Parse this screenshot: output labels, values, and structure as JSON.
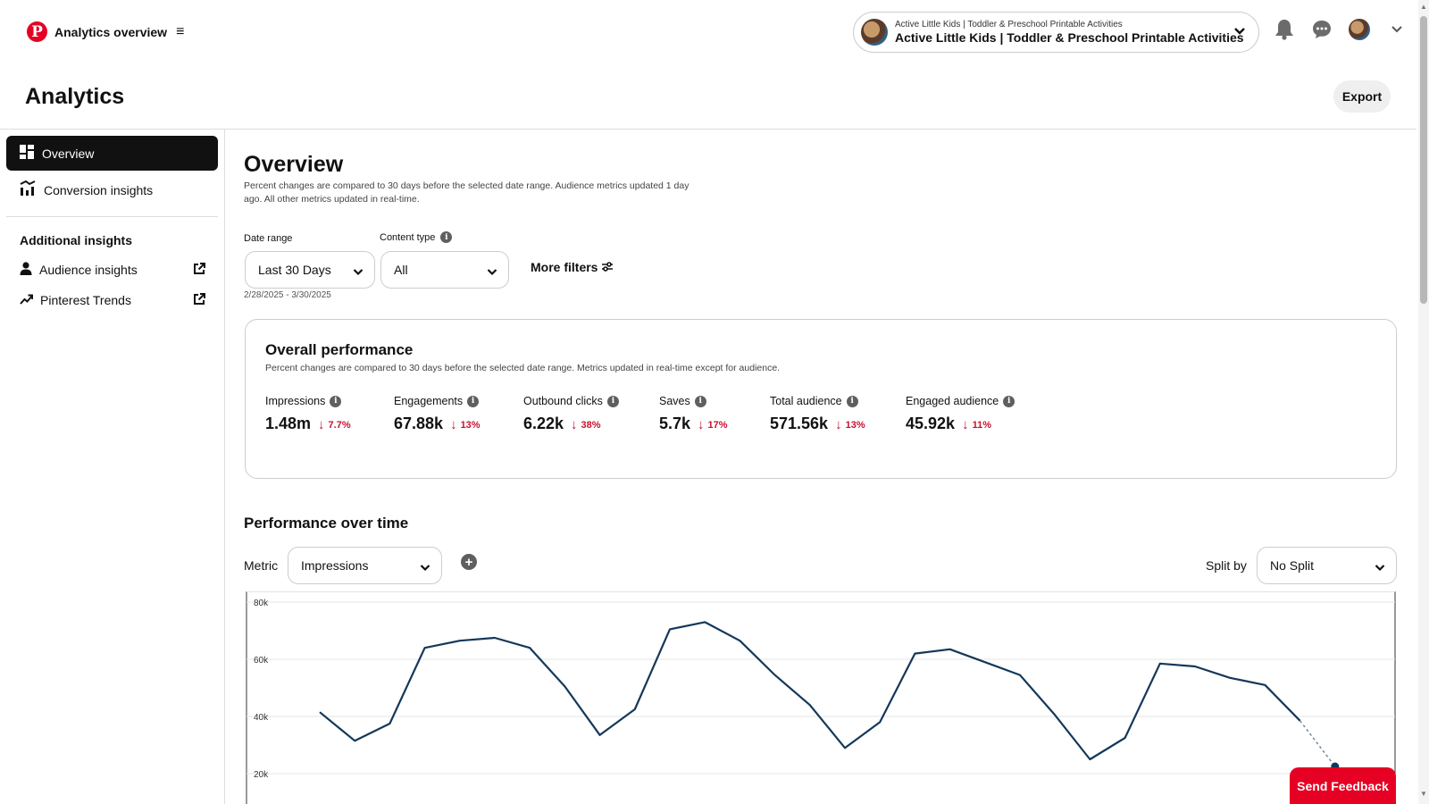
{
  "header": {
    "brand_title": "Analytics overview",
    "account_small": "Active Little Kids | Toddler & Preschool Printable Activities",
    "account_name": "Active Little Kids | Toddler & Preschool Printable Activities",
    "icons": [
      "pinterest-logo-icon",
      "hamburger-menu-icon",
      "chevron-down-icon",
      "bell-icon",
      "chat-icon",
      "avatar"
    ]
  },
  "page": {
    "title": "Analytics",
    "export_label": "Export"
  },
  "sidebar": {
    "items": [
      {
        "label": "Overview",
        "active": true,
        "icon": "dashboard-icon"
      },
      {
        "label": "Conversion insights",
        "active": false,
        "icon": "conversion-chart-icon"
      }
    ],
    "additional_heading": "Additional insights",
    "links": [
      {
        "label": "Audience insights",
        "icon": "person-icon"
      },
      {
        "label": "Pinterest Trends",
        "icon": "trend-arrow-icon"
      }
    ]
  },
  "overview": {
    "title": "Overview",
    "subtitle": "Percent changes are compared to 30 days before the selected date range. Audience metrics updated 1 day ago. All other metrics updated in real-time.",
    "date_range_label": "Date range",
    "date_range_value": "Last 30 Days",
    "date_range_dates": "2/28/2025 - 3/30/2025",
    "content_type_label": "Content type",
    "content_type_value": "All",
    "more_filters_label": "More filters"
  },
  "performance": {
    "title": "Overall performance",
    "subtitle": "Percent changes are compared to 30 days before the selected date range. Metrics updated in real-time except for audience.",
    "metrics": [
      {
        "label": "Impressions",
        "value": "1.48m",
        "change": "7.7%"
      },
      {
        "label": "Engagements",
        "value": "67.88k",
        "change": "13%"
      },
      {
        "label": "Outbound clicks",
        "value": "6.22k",
        "change": "38%"
      },
      {
        "label": "Saves",
        "value": "5.7k",
        "change": "17%"
      },
      {
        "label": "Total audience",
        "value": "571.56k",
        "change": "13%"
      },
      {
        "label": "Engaged audience",
        "value": "45.92k",
        "change": "11%"
      }
    ],
    "change_color": "#c8102e"
  },
  "over_time": {
    "title": "Performance over time",
    "metric_label": "Metric",
    "metric_value": "Impressions",
    "split_label": "Split by",
    "split_value": "No Split"
  },
  "chart_data": {
    "type": "line",
    "title": "",
    "xlabel": "",
    "ylabel": "",
    "x": [
      1,
      2,
      3,
      4,
      5,
      6,
      7,
      8,
      9,
      10,
      11,
      12,
      13,
      14,
      15,
      16,
      17,
      18,
      19,
      20,
      21,
      22,
      23,
      24,
      25,
      26,
      27,
      28,
      29,
      30,
      31
    ],
    "values": [
      41500,
      31500,
      37500,
      64000,
      66500,
      67500,
      64000,
      50500,
      33500,
      42500,
      70500,
      73000,
      66500,
      54500,
      44000,
      29000,
      38000,
      62000,
      63500,
      59000,
      54500,
      40500,
      25000,
      32500,
      58500,
      57500,
      53500,
      51000,
      38500,
      null,
      null
    ],
    "partial_segment": {
      "from_index": 28,
      "to_index": 29,
      "end_value": 22500
    },
    "y_ticks": [
      "80k",
      "60k",
      "40k",
      "20k"
    ],
    "ylim": [
      0,
      80000
    ],
    "grid": true,
    "line_color": "#143859"
  },
  "feedback_label": "Send Feedback"
}
